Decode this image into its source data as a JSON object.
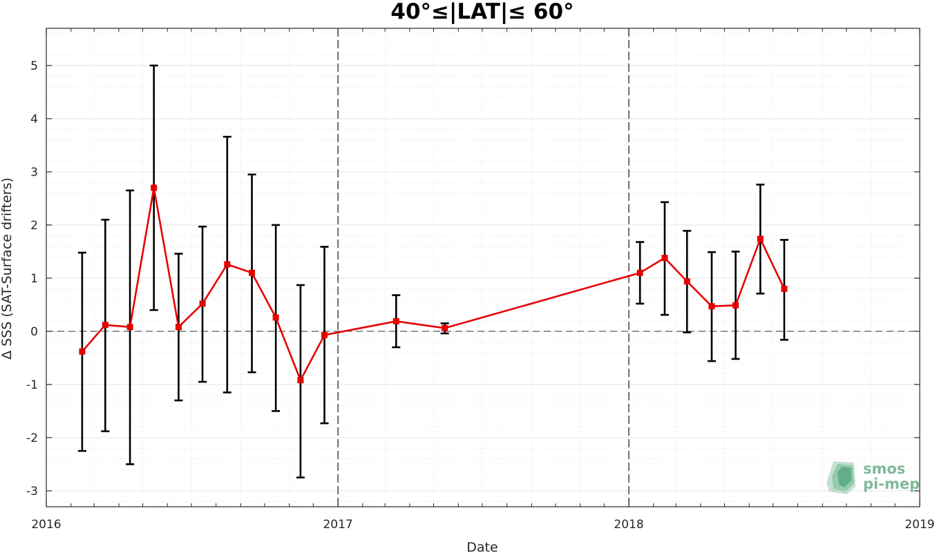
{
  "chart_data": {
    "type": "line",
    "title": "40°≤|LAT|≤ 60°",
    "xlabel": "Date",
    "ylabel": "Δ SSS (SAT-Surface drifters)",
    "xlim": [
      "2016-01-01",
      "2019-01-01"
    ],
    "ylim": [
      -3.3,
      5.7
    ],
    "x_ticks": [
      "2016",
      "2017",
      "2018",
      "2019"
    ],
    "y_ticks": [
      -3,
      -2,
      -1,
      0,
      1,
      2,
      3,
      4,
      5
    ],
    "grid": true,
    "reference_lines": {
      "horizontal": [
        0
      ],
      "vertical": [
        "2017-01-01",
        "2018-01-01"
      ]
    },
    "series": [
      {
        "color": "#e60000",
        "error_bar_color": "#000000",
        "points": [
          {
            "x": "2016-02-15",
            "y": -0.38,
            "lower": -2.25,
            "upper": 1.48
          },
          {
            "x": "2016-03-15",
            "y": 0.12,
            "lower": -1.88,
            "upper": 2.1
          },
          {
            "x": "2016-04-15",
            "y": 0.08,
            "lower": -2.5,
            "upper": 2.65
          },
          {
            "x": "2016-05-15",
            "y": 2.7,
            "lower": 0.4,
            "upper": 5.0
          },
          {
            "x": "2016-06-15",
            "y": 0.08,
            "lower": -1.3,
            "upper": 1.46
          },
          {
            "x": "2016-07-15",
            "y": 0.52,
            "lower": -0.95,
            "upper": 1.97
          },
          {
            "x": "2016-08-15",
            "y": 1.26,
            "lower": -1.15,
            "upper": 3.66
          },
          {
            "x": "2016-09-15",
            "y": 1.1,
            "lower": -0.77,
            "upper": 2.95
          },
          {
            "x": "2016-10-15",
            "y": 0.26,
            "lower": -1.5,
            "upper": 2.0
          },
          {
            "x": "2016-11-15",
            "y": -0.92,
            "lower": -2.75,
            "upper": 0.87
          },
          {
            "x": "2016-12-15",
            "y": -0.07,
            "lower": -1.73,
            "upper": 1.59
          },
          {
            "x": "2017-03-15",
            "y": 0.19,
            "lower": -0.3,
            "upper": 0.68
          },
          {
            "x": "2017-05-15",
            "y": 0.06,
            "lower": -0.04,
            "upper": 0.15
          },
          {
            "x": "2018-01-15",
            "y": 1.1,
            "lower": 0.52,
            "upper": 1.68
          },
          {
            "x": "2018-02-15",
            "y": 1.38,
            "lower": 0.31,
            "upper": 2.43
          },
          {
            "x": "2018-03-15",
            "y": 0.94,
            "lower": -0.02,
            "upper": 1.89
          },
          {
            "x": "2018-04-15",
            "y": 0.47,
            "lower": -0.56,
            "upper": 1.49
          },
          {
            "x": "2018-05-15",
            "y": 0.49,
            "lower": -0.52,
            "upper": 1.5
          },
          {
            "x": "2018-06-15",
            "y": 1.74,
            "lower": 0.71,
            "upper": 2.76
          },
          {
            "x": "2018-07-15",
            "y": 0.8,
            "lower": -0.16,
            "upper": 1.72
          }
        ]
      }
    ]
  },
  "logo": {
    "line1": "smos",
    "line2": "pi-mep"
  }
}
